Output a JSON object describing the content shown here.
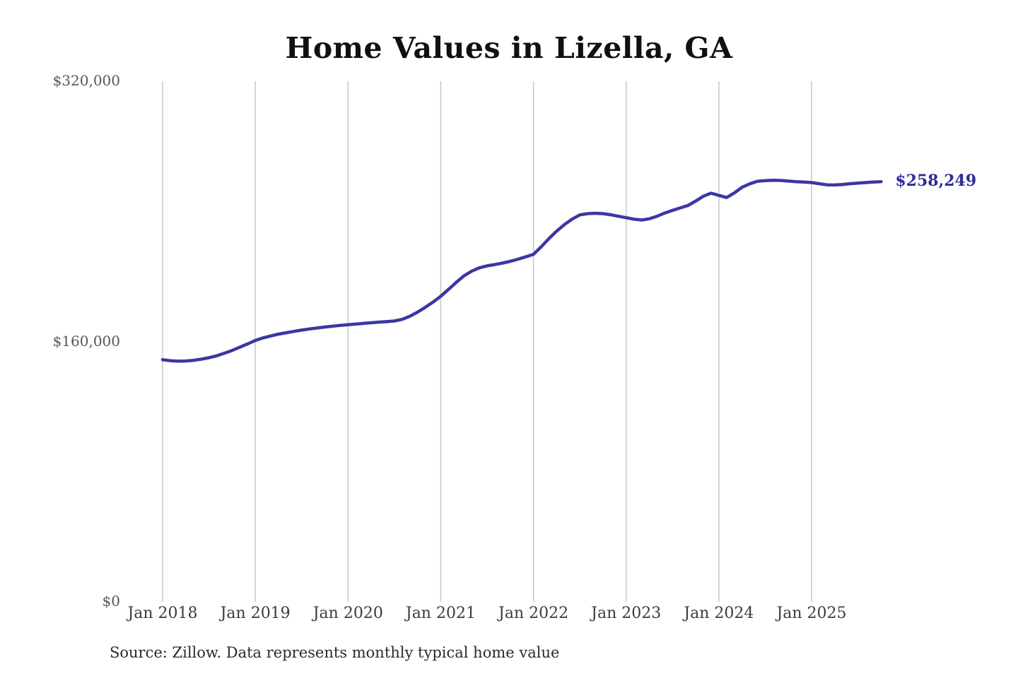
{
  "chart_data": {
    "type": "line",
    "title": "Home Values in Lizella, GA",
    "source_note": "Source: Zillow. Data represents monthly typical home value",
    "end_value_label": "$258,249",
    "x_tick_labels": [
      "Jan 2018",
      "Jan 2019",
      "Jan 2020",
      "Jan 2021",
      "Jan 2022",
      "Jan 2023",
      "Jan 2024",
      "Jan 2025"
    ],
    "y_ticks": [
      {
        "label": "$0",
        "value": 0
      },
      {
        "label": "$160,000",
        "value": 160000
      },
      {
        "label": "$320,000",
        "value": 320000
      }
    ],
    "ylim": [
      0,
      320000
    ],
    "grid": "vertical-only",
    "legend_position": "none",
    "colors": {
      "line": "#3c37a3",
      "end_label": "#2e2b98",
      "gridline": "#c7c7c7",
      "title": "#101010",
      "y_tick": "#565656",
      "x_tick": "#3c3c3c",
      "source": "#2a2a2a"
    },
    "series": [
      {
        "name": "Monthly typical home value",
        "x": [
          "2018-01",
          "2018-02",
          "2018-03",
          "2018-04",
          "2018-05",
          "2018-06",
          "2018-07",
          "2018-08",
          "2018-09",
          "2018-10",
          "2018-11",
          "2018-12",
          "2019-01",
          "2019-02",
          "2019-03",
          "2019-04",
          "2019-05",
          "2019-06",
          "2019-07",
          "2019-08",
          "2019-09",
          "2019-10",
          "2019-11",
          "2019-12",
          "2020-01",
          "2020-02",
          "2020-03",
          "2020-04",
          "2020-05",
          "2020-06",
          "2020-07",
          "2020-08",
          "2020-09",
          "2020-10",
          "2020-11",
          "2020-12",
          "2021-01",
          "2021-02",
          "2021-03",
          "2021-04",
          "2021-05",
          "2021-06",
          "2021-07",
          "2021-08",
          "2021-09",
          "2021-10",
          "2021-11",
          "2021-12",
          "2022-01",
          "2022-02",
          "2022-03",
          "2022-04",
          "2022-05",
          "2022-06",
          "2022-07",
          "2022-08",
          "2022-09",
          "2022-10",
          "2022-11",
          "2022-12",
          "2023-01",
          "2023-02",
          "2023-03",
          "2023-04",
          "2023-05",
          "2023-06",
          "2023-07",
          "2023-08",
          "2023-09",
          "2023-10",
          "2023-11",
          "2023-12",
          "2024-01",
          "2024-02",
          "2024-03",
          "2024-04",
          "2024-05",
          "2024-06",
          "2024-07",
          "2024-08",
          "2024-09",
          "2024-10",
          "2024-11",
          "2024-12",
          "2025-01",
          "2025-02",
          "2025-03",
          "2025-04",
          "2025-05",
          "2025-06",
          "2025-07",
          "2025-08",
          "2025-09",
          "2025-10"
        ],
        "values": [
          148800,
          148200,
          147900,
          148000,
          148400,
          149100,
          150000,
          151200,
          152800,
          154500,
          156500,
          158500,
          160600,
          162200,
          163400,
          164500,
          165400,
          166200,
          167000,
          167700,
          168300,
          168900,
          169400,
          169900,
          170300,
          170700,
          171100,
          171500,
          171900,
          172200,
          172600,
          173600,
          175500,
          178000,
          181000,
          184200,
          187800,
          192000,
          196300,
          200300,
          203200,
          205300,
          206500,
          207300,
          208200,
          209300,
          210600,
          212000,
          213600,
          218200,
          223200,
          227800,
          231800,
          235200,
          237800,
          238600,
          238800,
          238600,
          237900,
          237000,
          236100,
          235200,
          234700,
          235400,
          237000,
          239000,
          240600,
          242100,
          243600,
          246300,
          249300,
          251200,
          249800,
          248500,
          251300,
          254800,
          256900,
          258500,
          258900,
          259100,
          259000,
          258600,
          258200,
          258000,
          257700,
          257000,
          256300,
          256200,
          256500,
          257000,
          257400,
          257700,
          258000,
          258249
        ]
      }
    ]
  }
}
